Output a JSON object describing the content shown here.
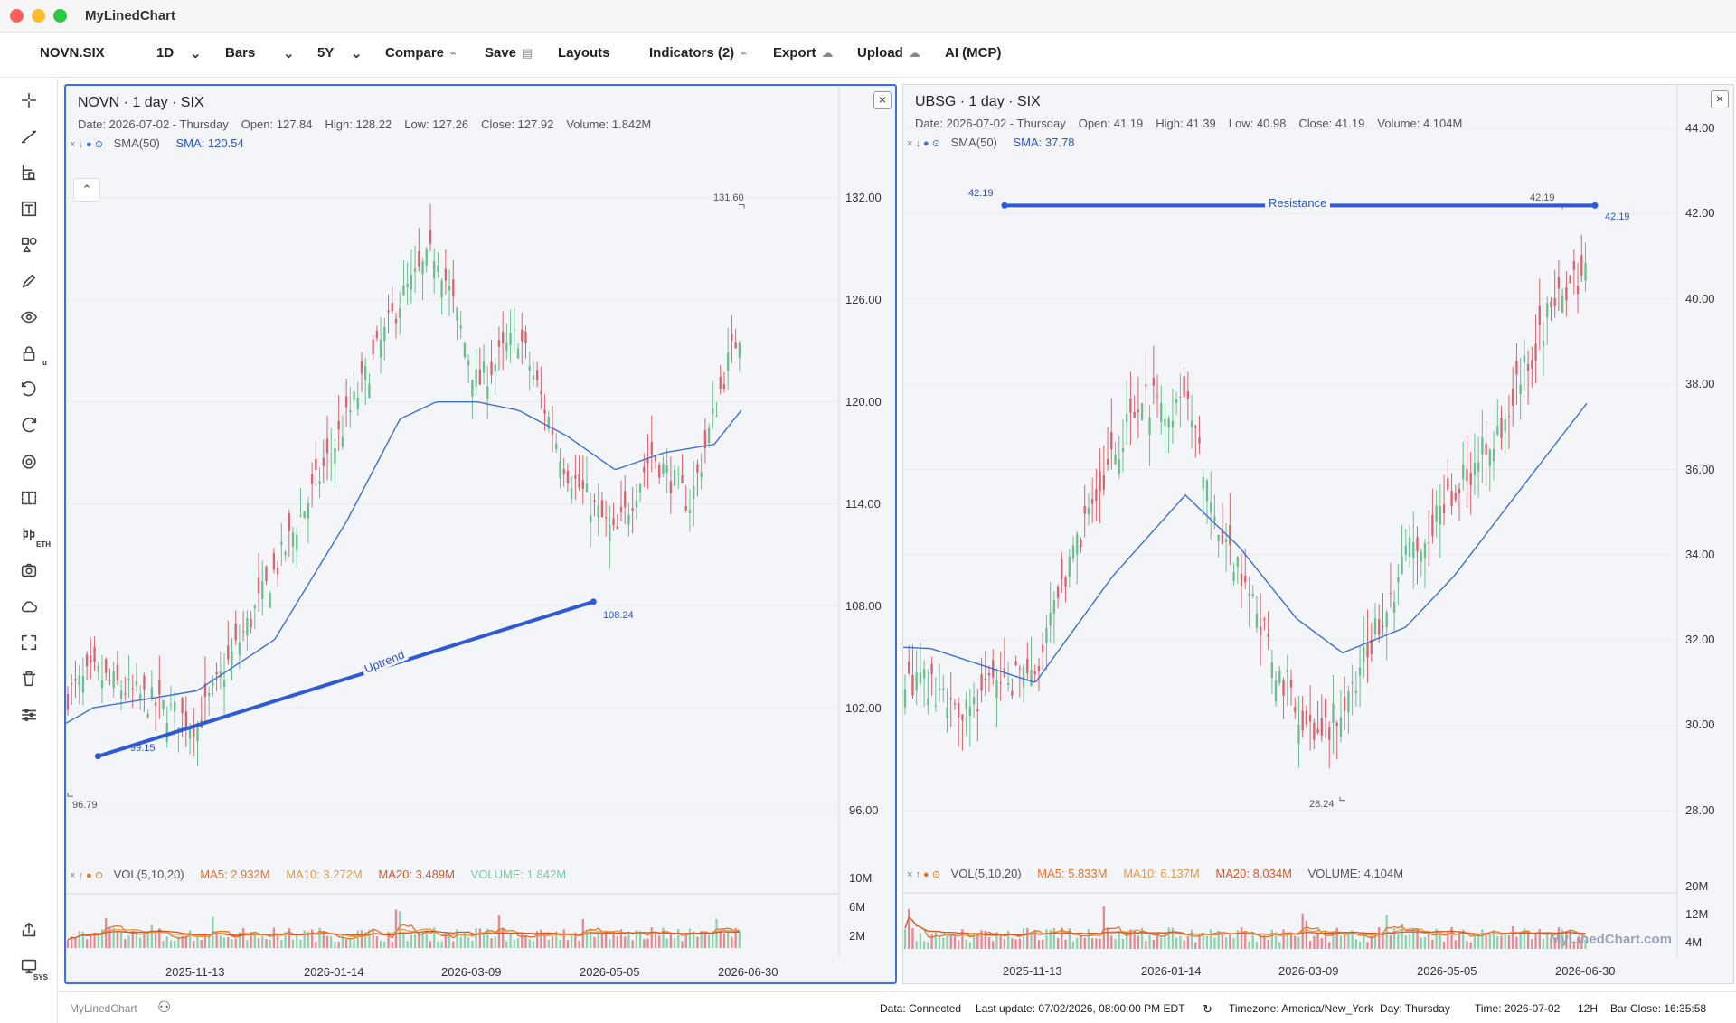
{
  "app": {
    "title": "MyLinedChart"
  },
  "toolbar": {
    "symbol": "NOVN.SIX",
    "interval": "1D",
    "chart_style": "Bars",
    "range": "5Y",
    "compare": "Compare",
    "save": "Save",
    "layouts": "Layouts",
    "indicators": "Indicators (2)",
    "export": "Export",
    "upload": "Upload",
    "ai": "AI (MCP)"
  },
  "sidebar": {
    "icons": [
      "crosshair-icon",
      "trendline-icon",
      "fib-icon",
      "text-icon",
      "shapes-icon",
      "brush-icon",
      "eye-icon",
      "lock-icon",
      "undo-icon",
      "redo-icon",
      "settings-icon",
      "split-view-icon",
      "extended-hours-icon",
      "camera-icon",
      "cloud-icon",
      "fullscreen-icon",
      "trash-icon",
      "sliders-icon"
    ],
    "lock_sub": "u",
    "eth_sub": "ETH",
    "sys_sub": "SYS"
  },
  "left": {
    "title": "NOVN · 1 day · SIX",
    "ohlc": {
      "date": "Date: 2026-07-02 - Thursday",
      "open": "Open: 127.84",
      "high": "High: 128.22",
      "low": "Low: 127.26",
      "close": "Close: 127.92",
      "volume": "Volume: 1.842M"
    },
    "sma_name": "SMA(50)",
    "sma_value": "SMA: 120.54",
    "vol": {
      "name": "VOL(5,10,20)",
      "ma5": "MA5: 2.932M",
      "ma10": "MA10: 3.272M",
      "ma20": "MA20: 3.489M",
      "volume": "VOLUME: 1.842M"
    },
    "price_axis": [
      "132.00",
      "126.00",
      "120.00",
      "114.00",
      "108.00",
      "102.00",
      "96.00"
    ],
    "vol_axis": [
      "10M",
      "6M",
      "2M"
    ],
    "time_axis": [
      "2025-11-13",
      "2026-01-14",
      "2026-03-09",
      "2026-05-05",
      "2026-06-30"
    ],
    "hi_label": "131.60",
    "lo_label": "96.79",
    "trend": {
      "label": "Uptrend",
      "start": "99.15",
      "end": "108.24"
    }
  },
  "right": {
    "title": "UBSG · 1 day · SIX",
    "ohlc": {
      "date": "Date: 2026-07-02 - Thursday",
      "open": "Open: 41.19",
      "high": "High: 41.39",
      "low": "Low: 40.98",
      "close": "Close: 41.19",
      "volume": "Volume: 4.104M"
    },
    "sma_name": "SMA(50)",
    "sma_value": "SMA: 37.78",
    "vol": {
      "name": "VOL(5,10,20)",
      "ma5": "MA5: 5.833M",
      "ma10": "MA10: 6.137M",
      "ma20": "MA20: 8.034M",
      "volume": "VOLUME: 4.104M"
    },
    "price_axis": [
      "44.00",
      "42.00",
      "40.00",
      "38.00",
      "36.00",
      "34.00",
      "32.00",
      "30.00",
      "28.00"
    ],
    "vol_axis": [
      "20M",
      "12M",
      "4M"
    ],
    "time_axis": [
      "2025-11-13",
      "2026-01-14",
      "2026-03-09",
      "2026-05-05",
      "2026-06-30"
    ],
    "hi_label": "42.19",
    "lo_label": "28.24",
    "resistance": {
      "label": "Resistance",
      "left_value": "42.19",
      "right_value": "42.19"
    },
    "watermark": "MyLinedChart.com"
  },
  "status": {
    "brand": "MyLinedChart",
    "data": "Data: Connected",
    "update": "Last update: 07/02/2026, 08:00:00 PM EDT",
    "timezone": "Timezone: America/New_York",
    "day": "Day: Thursday",
    "time": "Time: 2026-07-02",
    "hours": "12H",
    "bar_close": "Bar Close: 16:35:58"
  },
  "colors": {
    "up": "#6bbf8f",
    "down": "#d8646c",
    "sma": "#3f6fd0",
    "drawing": "#2f5ad6",
    "ma5": "#e2742d",
    "ma10": "#e89a43",
    "ma20": "#d9572a"
  },
  "chart_data": [
    {
      "type": "candlestick",
      "title": "NOVN · 1 day · SIX",
      "ylim": [
        96,
        132
      ],
      "x_ticks": [
        "2025-11-13",
        "2026-01-14",
        "2026-03-09",
        "2026-05-05",
        "2026-06-30"
      ],
      "close_path": {
        "dates": [
          "2025-09-01",
          "2025-10-01",
          "2025-11-13",
          "2025-12-15",
          "2026-01-14",
          "2026-02-05",
          "2026-02-20",
          "2026-03-09",
          "2026-03-26",
          "2026-04-15",
          "2026-05-05",
          "2026-05-20",
          "2026-06-05",
          "2026-06-20",
          "2026-06-30",
          "2026-07-02"
        ],
        "values": [
          100.5,
          104,
          101,
          110,
          119,
          126,
          129,
          121,
          124,
          116,
          112,
          117,
          114,
          122,
          126,
          127.92
        ]
      },
      "sma50": {
        "dates": [
          "2025-08-25",
          "2025-10-01",
          "2025-11-13",
          "2025-12-15",
          "2026-01-14",
          "2026-02-05",
          "2026-02-20",
          "2026-03-09",
          "2026-03-26",
          "2026-04-15",
          "2026-05-05",
          "2026-05-25",
          "2026-06-15",
          "2026-07-02"
        ],
        "values": [
          99,
          102,
          103,
          106,
          113,
          119,
          120,
          120,
          119.5,
          118,
          116,
          117,
          117.5,
          120.54
        ]
      },
      "annotations": {
        "high": 131.6,
        "low": 96.79,
        "trendline": {
          "label": "Uptrend",
          "from": 99.15,
          "to": 108.24
        }
      },
      "volume_axis": [
        "10M",
        "6M",
        "2M"
      ]
    },
    {
      "type": "candlestick",
      "title": "UBSG · 1 day · SIX",
      "ylim": [
        28,
        44
      ],
      "x_ticks": [
        "2025-11-13",
        "2026-01-14",
        "2026-03-09",
        "2026-05-05",
        "2026-06-30"
      ],
      "close_path": {
        "dates": [
          "2025-09-01",
          "2025-09-25",
          "2025-10-15",
          "2025-11-13",
          "2025-12-05",
          "2025-12-25",
          "2026-01-14",
          "2026-02-01",
          "2026-02-20",
          "2026-03-09",
          "2026-03-25",
          "2026-04-15",
          "2026-05-05",
          "2026-05-25",
          "2026-06-15",
          "2026-06-30",
          "2026-07-02"
        ],
        "values": [
          32.5,
          31,
          30.5,
          31.2,
          35,
          37.5,
          37.6,
          34,
          31.5,
          29.5,
          31,
          34,
          35.5,
          37,
          40,
          40.5,
          41.19
        ]
      },
      "sma50": {
        "dates": [
          "2025-08-25",
          "2025-10-01",
          "2025-11-13",
          "2025-12-15",
          "2026-01-14",
          "2026-02-05",
          "2026-03-01",
          "2026-03-20",
          "2026-04-15",
          "2026-05-05",
          "2026-06-01",
          "2026-07-02"
        ],
        "values": [
          31.9,
          31.8,
          31.0,
          33.5,
          35.4,
          34.2,
          32.5,
          31.7,
          32.3,
          33.5,
          35.5,
          37.78
        ]
      },
      "annotations": {
        "high": 42.19,
        "low": 28.24,
        "resistance": {
          "label": "Resistance",
          "value": 42.19
        }
      },
      "volume_axis": [
        "20M",
        "12M",
        "4M"
      ]
    }
  ]
}
